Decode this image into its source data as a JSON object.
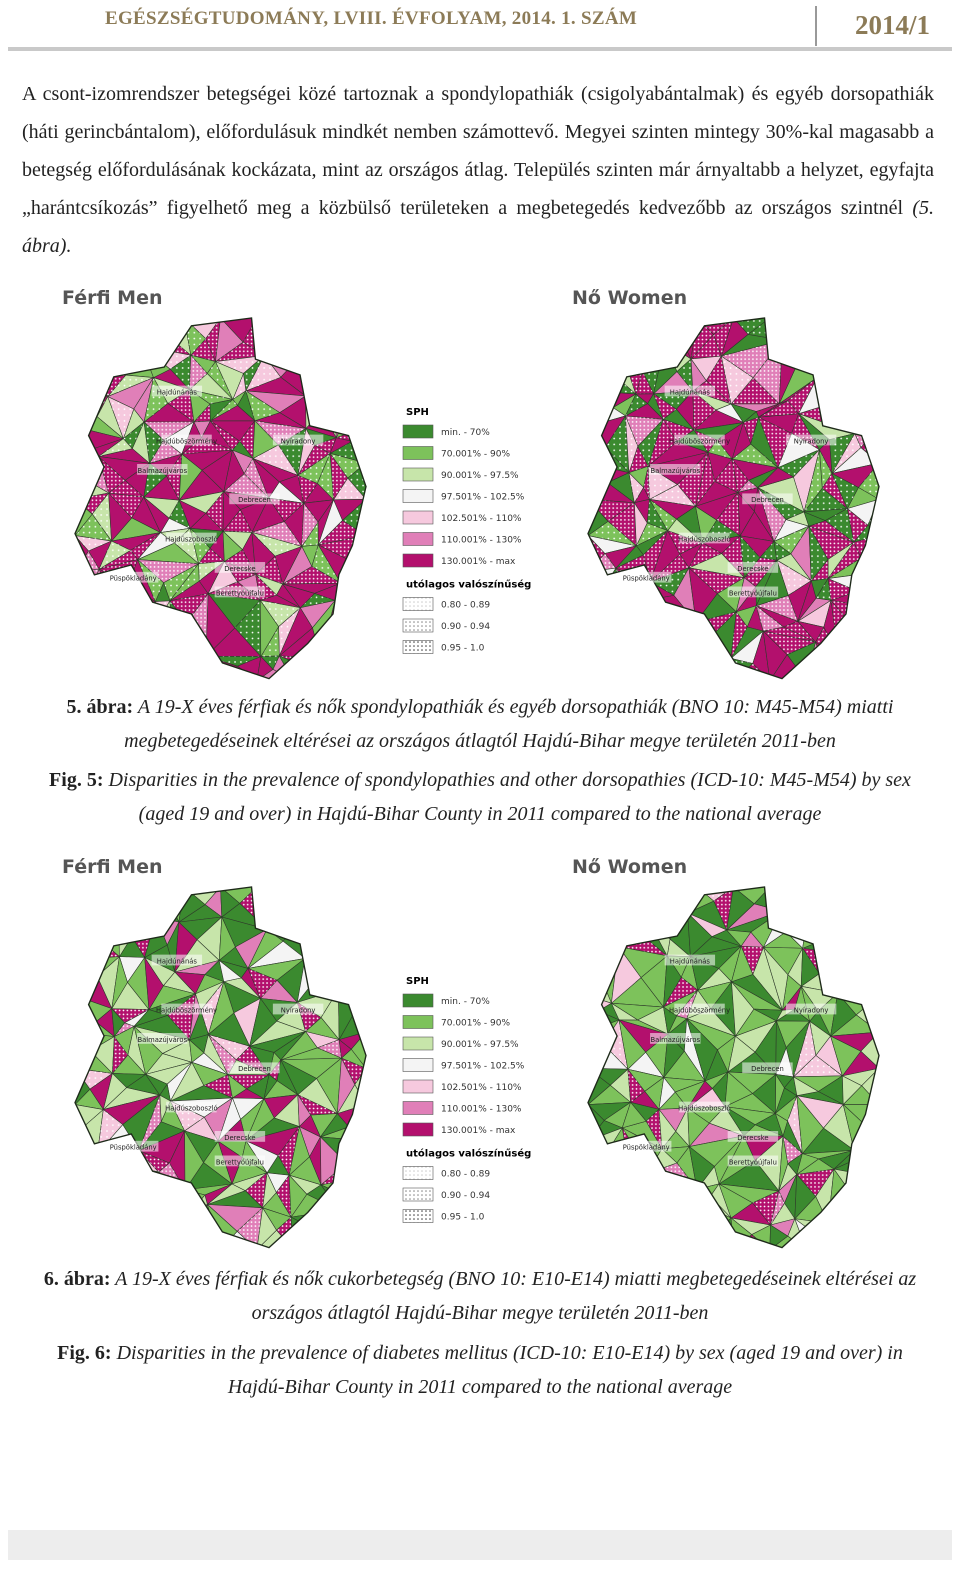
{
  "header": {
    "journal": "EGÉSZSÉGTUDOMÁNY, LVIII. ÉVFOLYAM, 2014. 1. SZÁM",
    "issue": "2014/1"
  },
  "paragraph": {
    "text": "A csont-izomrendszer betegségei közé tartoznak a spondylopathiák (csigolyabántalmak) és egyéb dorsopathiák (háti gerincbántalom), előfordulásuk mindkét nemben számottevő. Megyei szinten mintegy 30%-kal magasabb a betegség előfordulásának kockázata, mint az országos átlag. Település szinten már árnyaltabb a helyzet, egyfajta „harántcsíkozás” figyelhető meg a közbülső területeken a megbetegedés kedvezőbb az országos szintnél",
    "ref": "(5. ábra)."
  },
  "map_labels": [
    "Hajdúnánás",
    "Hajdúböszörmény",
    "Nyíradony",
    "Balmazújváros",
    "Debrecen",
    "Hajdúszoboszló",
    "Derecske",
    "Püspökladány",
    "Berettyóújfalu"
  ],
  "legend": {
    "title": "SPH",
    "classes": [
      "min. - 70%",
      "70.001% - 90%",
      "90.001% - 97.5%",
      "97.501% - 102.5%",
      "102.501% - 110%",
      "110.001% - 130%",
      "130.001% - max"
    ],
    "prob_title": "utólagos valószínűség",
    "prob_classes": [
      "0.80 - 0.89",
      "0.90 - 0.94",
      "0.95 - 1.0"
    ]
  },
  "figures": [
    {
      "panels": [
        "Férfi Men",
        "Nő Women"
      ],
      "caption_hu": {
        "label": "5. ábra:",
        "text": "A 19-X éves férfiak és nők spondylopathiák és egyéb dorsopathiák (BNO 10: M45-M54) miatti megbetegedéseinek eltérései az országos átlagtól Hajdú-Bihar megye területén 2011-ben"
      },
      "caption_en": {
        "label": "Fig. 5:",
        "text": "Disparities in the prevalence of spondylopathies and other dorsopathies (ICD-10: M45-M54) by sex (aged 19 and over) in Hajdú-Bihar County in 2011 compared to the national average"
      }
    },
    {
      "panels": [
        "Férfi Men",
        "Nő Women"
      ],
      "caption_hu": {
        "label": "6. ábra:",
        "text": "A 19-X éves férfiak és nők cukorbetegség (BNO 10: E10-E14) miatti megbetegedéseinek eltérései az országos átlagtól Hajdú-Bihar megye területén 2011-ben"
      },
      "caption_en": {
        "label": "Fig. 6:",
        "text": "Disparities in the prevalence of diabetes mellitus (ICD-10: E10-E14) by sex (aged 19 and over) in Hajdú-Bihar County in 2011 compared to the national average"
      }
    }
  ]
}
